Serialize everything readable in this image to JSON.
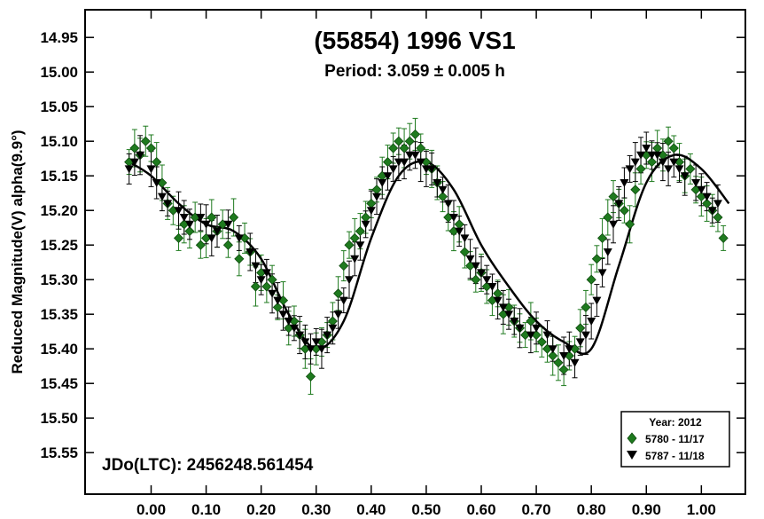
{
  "chart_data": {
    "type": "scatter",
    "title": "(55854) 1996 VS1",
    "subtitle": "Period: 3.059 ± 0.005 h",
    "ylabel": "Reduced Magnitude(V) alpha(9.9°)",
    "xlabel": "",
    "annotation": "JDo(LTC): 2456248.561454",
    "xlim": [
      -0.12,
      1.08
    ],
    "ylim": [
      15.61,
      14.91
    ],
    "y_inverted": true,
    "x_ticks": [
      "0.00",
      "0.10",
      "0.20",
      "0.30",
      "0.40",
      "0.50",
      "0.60",
      "0.70",
      "0.80",
      "0.90",
      "1.00"
    ],
    "x_tick_values": [
      0,
      0.1,
      0.2,
      0.3,
      0.4,
      0.5,
      0.6,
      0.7,
      0.8,
      0.9,
      1.0
    ],
    "y_ticks": [
      "14.95",
      "15.00",
      "15.05",
      "15.10",
      "15.15",
      "15.20",
      "15.25",
      "15.30",
      "15.35",
      "15.40",
      "15.45",
      "15.50",
      "15.55"
    ],
    "y_tick_values": [
      14.95,
      15.0,
      15.05,
      15.1,
      15.15,
      15.2,
      15.25,
      15.3,
      15.35,
      15.4,
      15.45,
      15.5,
      15.55
    ],
    "legend": {
      "title": "Year: 2012",
      "position": "bottom-right",
      "entries": [
        {
          "label": "5780 - 11/17",
          "marker": "diamond",
          "color": "#1e7a1e"
        },
        {
          "label": "5787 - 11/18",
          "marker": "triangle-down",
          "color": "#000000"
        }
      ]
    },
    "fit_curve": {
      "color": "#000000",
      "points": [
        [
          -0.04,
          15.13
        ],
        [
          0.0,
          15.15
        ],
        [
          0.05,
          15.19
        ],
        [
          0.1,
          15.22
        ],
        [
          0.15,
          15.23
        ],
        [
          0.2,
          15.27
        ],
        [
          0.25,
          15.35
        ],
        [
          0.3,
          15.4
        ],
        [
          0.35,
          15.36
        ],
        [
          0.4,
          15.24
        ],
        [
          0.45,
          15.15
        ],
        [
          0.5,
          15.13
        ],
        [
          0.55,
          15.17
        ],
        [
          0.6,
          15.25
        ],
        [
          0.65,
          15.31
        ],
        [
          0.7,
          15.36
        ],
        [
          0.75,
          15.39
        ],
        [
          0.8,
          15.4
        ],
        [
          0.85,
          15.28
        ],
        [
          0.9,
          15.16
        ],
        [
          0.95,
          15.12
        ],
        [
          1.0,
          15.14
        ],
        [
          1.05,
          15.19
        ]
      ]
    },
    "series": [
      {
        "name": "5780 - 11/17",
        "marker": "diamond",
        "color": "#1e7a1e",
        "points": [
          [
            -0.04,
            15.13
          ],
          [
            -0.03,
            15.11
          ],
          [
            -0.02,
            15.12
          ],
          [
            -0.01,
            15.1
          ],
          [
            0.0,
            15.11
          ],
          [
            0.01,
            15.13
          ],
          [
            0.02,
            15.16
          ],
          [
            0.03,
            15.19
          ],
          [
            0.04,
            15.2
          ],
          [
            0.05,
            15.24
          ],
          [
            0.06,
            15.22
          ],
          [
            0.07,
            15.23
          ],
          [
            0.08,
            15.21
          ],
          [
            0.09,
            15.25
          ],
          [
            0.1,
            15.24
          ],
          [
            0.11,
            15.21
          ],
          [
            0.12,
            15.23
          ],
          [
            0.13,
            15.22
          ],
          [
            0.14,
            15.25
          ],
          [
            0.15,
            15.21
          ],
          [
            0.16,
            15.27
          ],
          [
            0.17,
            15.24
          ],
          [
            0.18,
            15.26
          ],
          [
            0.19,
            15.31
          ],
          [
            0.2,
            15.29
          ],
          [
            0.21,
            15.31
          ],
          [
            0.22,
            15.3
          ],
          [
            0.23,
            15.34
          ],
          [
            0.24,
            15.33
          ],
          [
            0.25,
            15.37
          ],
          [
            0.26,
            15.36
          ],
          [
            0.27,
            15.38
          ],
          [
            0.28,
            15.4
          ],
          [
            0.29,
            15.44
          ],
          [
            0.3,
            15.4
          ],
          [
            0.31,
            15.39
          ],
          [
            0.32,
            15.38
          ],
          [
            0.33,
            15.36
          ],
          [
            0.34,
            15.32
          ],
          [
            0.35,
            15.28
          ],
          [
            0.36,
            15.25
          ],
          [
            0.37,
            15.24
          ],
          [
            0.38,
            15.23
          ],
          [
            0.39,
            15.21
          ],
          [
            0.4,
            15.19
          ],
          [
            0.41,
            15.17
          ],
          [
            0.42,
            15.15
          ],
          [
            0.43,
            15.13
          ],
          [
            0.44,
            15.11
          ],
          [
            0.45,
            15.1
          ],
          [
            0.46,
            15.11
          ],
          [
            0.47,
            15.1
          ],
          [
            0.48,
            15.09
          ],
          [
            0.49,
            15.11
          ],
          [
            0.5,
            15.13
          ],
          [
            0.51,
            15.14
          ],
          [
            0.52,
            15.16
          ],
          [
            0.53,
            15.18
          ],
          [
            0.54,
            15.21
          ],
          [
            0.55,
            15.23
          ],
          [
            0.56,
            15.22
          ],
          [
            0.57,
            15.26
          ],
          [
            0.58,
            15.28
          ],
          [
            0.59,
            15.3
          ],
          [
            0.6,
            15.29
          ],
          [
            0.61,
            15.31
          ],
          [
            0.62,
            15.33
          ],
          [
            0.63,
            15.32
          ],
          [
            0.64,
            15.35
          ],
          [
            0.65,
            15.34
          ],
          [
            0.66,
            15.36
          ],
          [
            0.67,
            15.37
          ],
          [
            0.68,
            15.38
          ],
          [
            0.69,
            15.36
          ],
          [
            0.7,
            15.38
          ],
          [
            0.71,
            15.39
          ],
          [
            0.72,
            15.4
          ],
          [
            0.73,
            15.41
          ],
          [
            0.74,
            15.42
          ],
          [
            0.75,
            15.43
          ],
          [
            0.76,
            15.41
          ],
          [
            0.77,
            15.4
          ],
          [
            0.78,
            15.37
          ],
          [
            0.79,
            15.34
          ],
          [
            0.8,
            15.3
          ],
          [
            0.81,
            15.27
          ],
          [
            0.82,
            15.24
          ],
          [
            0.83,
            15.21
          ],
          [
            0.84,
            15.18
          ],
          [
            0.85,
            15.19
          ],
          [
            0.86,
            15.2
          ],
          [
            0.87,
            15.22
          ],
          [
            0.88,
            15.17
          ],
          [
            0.89,
            15.14
          ],
          [
            0.9,
            15.12
          ],
          [
            0.91,
            15.13
          ],
          [
            0.92,
            15.11
          ],
          [
            0.93,
            15.12
          ],
          [
            0.94,
            15.1
          ],
          [
            0.95,
            15.11
          ],
          [
            0.96,
            15.13
          ],
          [
            0.97,
            15.15
          ],
          [
            0.98,
            15.14
          ],
          [
            0.99,
            15.17
          ],
          [
            1.0,
            15.18
          ],
          [
            1.01,
            15.19
          ],
          [
            1.02,
            15.2
          ],
          [
            1.03,
            15.21
          ],
          [
            1.04,
            15.24
          ]
        ]
      },
      {
        "name": "5787 - 11/18",
        "marker": "triangle-down",
        "color": "#000000",
        "points": [
          [
            -0.04,
            15.14
          ],
          [
            -0.03,
            15.13
          ],
          [
            -0.02,
            15.12
          ],
          [
            0.0,
            15.14
          ],
          [
            0.01,
            15.16
          ],
          [
            0.02,
            15.18
          ],
          [
            0.03,
            15.19
          ],
          [
            0.05,
            15.2
          ],
          [
            0.06,
            15.21
          ],
          [
            0.07,
            15.22
          ],
          [
            0.09,
            15.21
          ],
          [
            0.1,
            15.22
          ],
          [
            0.11,
            15.24
          ],
          [
            0.12,
            15.23
          ],
          [
            0.14,
            15.22
          ],
          [
            0.16,
            15.24
          ],
          [
            0.18,
            15.26
          ],
          [
            0.19,
            15.28
          ],
          [
            0.2,
            15.3
          ],
          [
            0.21,
            15.29
          ],
          [
            0.22,
            15.32
          ],
          [
            0.23,
            15.33
          ],
          [
            0.24,
            15.35
          ],
          [
            0.25,
            15.36
          ],
          [
            0.26,
            15.37
          ],
          [
            0.27,
            15.38
          ],
          [
            0.28,
            15.39
          ],
          [
            0.29,
            15.4
          ],
          [
            0.3,
            15.39
          ],
          [
            0.31,
            15.4
          ],
          [
            0.32,
            15.38
          ],
          [
            0.33,
            15.37
          ],
          [
            0.34,
            15.35
          ],
          [
            0.35,
            15.33
          ],
          [
            0.36,
            15.3
          ],
          [
            0.37,
            15.27
          ],
          [
            0.38,
            15.25
          ],
          [
            0.39,
            15.22
          ],
          [
            0.4,
            15.2
          ],
          [
            0.41,
            15.18
          ],
          [
            0.42,
            15.16
          ],
          [
            0.43,
            15.15
          ],
          [
            0.44,
            15.14
          ],
          [
            0.45,
            15.13
          ],
          [
            0.46,
            15.13
          ],
          [
            0.47,
            15.12
          ],
          [
            0.48,
            15.12
          ],
          [
            0.49,
            15.13
          ],
          [
            0.5,
            15.14
          ],
          [
            0.51,
            15.14
          ],
          [
            0.52,
            15.16
          ],
          [
            0.53,
            15.17
          ],
          [
            0.54,
            15.19
          ],
          [
            0.55,
            15.21
          ],
          [
            0.56,
            15.23
          ],
          [
            0.57,
            15.24
          ],
          [
            0.58,
            15.27
          ],
          [
            0.59,
            15.28
          ],
          [
            0.6,
            15.29
          ],
          [
            0.61,
            15.3
          ],
          [
            0.62,
            15.31
          ],
          [
            0.63,
            15.33
          ],
          [
            0.64,
            15.34
          ],
          [
            0.65,
            15.35
          ],
          [
            0.66,
            15.36
          ],
          [
            0.67,
            15.37
          ],
          [
            0.69,
            15.38
          ],
          [
            0.7,
            15.37
          ],
          [
            0.72,
            15.38
          ],
          [
            0.73,
            15.4
          ],
          [
            0.75,
            15.41
          ],
          [
            0.76,
            15.4
          ],
          [
            0.77,
            15.42
          ],
          [
            0.78,
            15.39
          ],
          [
            0.79,
            15.38
          ],
          [
            0.8,
            15.36
          ],
          [
            0.81,
            15.33
          ],
          [
            0.82,
            15.29
          ],
          [
            0.83,
            15.26
          ],
          [
            0.84,
            15.22
          ],
          [
            0.85,
            15.19
          ],
          [
            0.86,
            15.16
          ],
          [
            0.87,
            15.14
          ],
          [
            0.88,
            15.13
          ],
          [
            0.89,
            15.12
          ],
          [
            0.9,
            15.11
          ],
          [
            0.91,
            15.12
          ],
          [
            0.92,
            15.12
          ],
          [
            0.93,
            15.13
          ],
          [
            0.94,
            15.14
          ],
          [
            0.95,
            15.13
          ],
          [
            0.96,
            15.14
          ],
          [
            0.97,
            15.15
          ],
          [
            0.99,
            15.16
          ],
          [
            1.0,
            15.17
          ],
          [
            1.01,
            15.18
          ],
          [
            1.02,
            15.2
          ],
          [
            1.03,
            15.19
          ]
        ]
      }
    ]
  }
}
